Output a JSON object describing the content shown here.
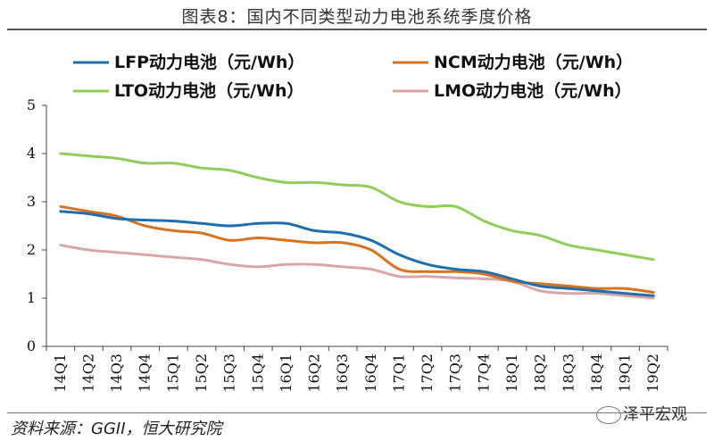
{
  "title": "图表8：国内不同类型动力电池系统季度价格",
  "source": "资料来源：GGII，恒大研究院",
  "watermark": "泽平宏观",
  "colors": {
    "LFP": "#1f6fae",
    "NCM": "#d9731f",
    "LTO": "#8fce5a",
    "LMO": "#d9a6a6"
  },
  "chart_data": {
    "type": "line",
    "title": "图表8：国内不同类型动力电池系统季度价格",
    "xlabel": "",
    "ylabel": "",
    "ylim": [
      0,
      5
    ],
    "yticks": [
      0,
      1,
      2,
      3,
      4,
      5
    ],
    "grid": false,
    "legend_position": "top",
    "categories": [
      "14Q1",
      "14Q2",
      "14Q3",
      "14Q4",
      "15Q1",
      "15Q2",
      "15Q3",
      "15Q4",
      "16Q1",
      "16Q2",
      "16Q3",
      "16Q4",
      "17Q1",
      "17Q2",
      "17Q3",
      "17Q4",
      "18Q1",
      "18Q2",
      "18Q3",
      "18Q4",
      "19Q1",
      "19Q2"
    ],
    "series": [
      {
        "name": "LFP动力电池（元/Wh）",
        "key": "LFP",
        "values": [
          2.8,
          2.75,
          2.65,
          2.62,
          2.6,
          2.55,
          2.5,
          2.55,
          2.55,
          2.4,
          2.35,
          2.2,
          1.9,
          1.7,
          1.6,
          1.55,
          1.4,
          1.25,
          1.2,
          1.15,
          1.1,
          1.05
        ]
      },
      {
        "name": "NCM动力电池（元/Wh）",
        "key": "NCM",
        "values": [
          2.9,
          2.8,
          2.7,
          2.5,
          2.4,
          2.35,
          2.2,
          2.25,
          2.2,
          2.15,
          2.15,
          2.0,
          1.6,
          1.55,
          1.55,
          1.5,
          1.35,
          1.3,
          1.25,
          1.2,
          1.2,
          1.12
        ]
      },
      {
        "name": "LTO动力电池（元/Wh）",
        "key": "LTO",
        "values": [
          4.0,
          3.95,
          3.9,
          3.8,
          3.8,
          3.7,
          3.65,
          3.5,
          3.4,
          3.4,
          3.35,
          3.3,
          3.0,
          2.9,
          2.9,
          2.6,
          2.4,
          2.3,
          2.1,
          2.0,
          1.9,
          1.8
        ]
      },
      {
        "name": "LMO动力电池（元/Wh）",
        "key": "LMO",
        "values": [
          2.1,
          2.0,
          1.95,
          1.9,
          1.85,
          1.8,
          1.7,
          1.65,
          1.7,
          1.7,
          1.65,
          1.6,
          1.45,
          1.45,
          1.42,
          1.4,
          1.35,
          1.15,
          1.1,
          1.1,
          1.05,
          1.0
        ]
      }
    ]
  }
}
